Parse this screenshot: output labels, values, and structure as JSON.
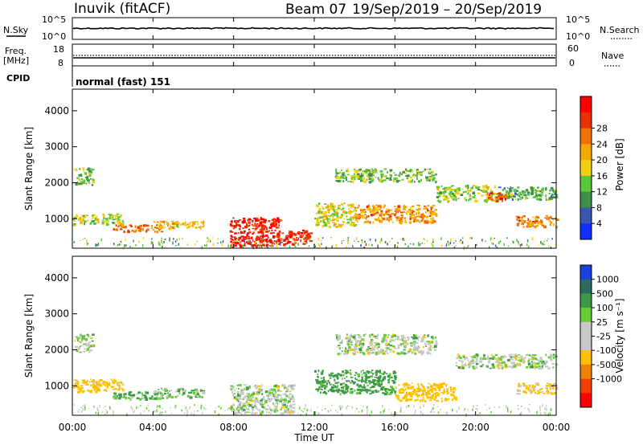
{
  "header": {
    "station": "Inuvik (fitACF)",
    "beam": "Beam 07",
    "date_range": "19/Sep/2019 – 20/Sep/2019"
  },
  "top_panels": {
    "nsky": {
      "label": "N.Sky",
      "ticks": [
        "10^5",
        "10^0"
      ]
    },
    "nsearch": {
      "label": "N.Search",
      "ticks": [
        "10^5",
        "10^0"
      ]
    },
    "freq": {
      "label_line1": "Freq.",
      "label_line2": "[MHz]",
      "ticks": [
        "18",
        "8"
      ]
    },
    "nave": {
      "label": "Nave",
      "ticks": [
        "60",
        "0"
      ]
    },
    "cpid": {
      "label": "CPID",
      "value": "normal (fast) 151"
    }
  },
  "chart_data": [
    {
      "type": "heatmap",
      "name": "power",
      "ylabel": "Slant Range [km]",
      "colorbar_label": "Power [dB]",
      "ylim": [
        180,
        4600
      ],
      "yticks": [
        1000,
        2000,
        3000,
        4000
      ],
      "colorbar_ticks": [
        "4",
        "8",
        "12",
        "16",
        "20",
        "24",
        "28"
      ],
      "colorbar_colors": [
        "#1030ff",
        "#3a56b0",
        "#3f8f4a",
        "#58c83a",
        "#f0d010",
        "#f5a800",
        "#f07000",
        "#e83000",
        "#ff0000"
      ],
      "regions": [
        {
          "t0": 0.1,
          "t1": 1.0,
          "r0": 1950,
          "r1": 2450,
          "value": 12
        },
        {
          "t0": 0.0,
          "t1": 2.5,
          "r0": 850,
          "r1": 1150,
          "value": 14
        },
        {
          "t0": 2.0,
          "t1": 4.5,
          "r0": 650,
          "r1": 850,
          "value": 24
        },
        {
          "t0": 4.0,
          "t1": 6.5,
          "r0": 750,
          "r1": 950,
          "value": 18
        },
        {
          "t0": 7.8,
          "t1": 10.3,
          "r0": 250,
          "r1": 1050,
          "value": 30
        },
        {
          "t0": 10.3,
          "t1": 11.8,
          "r0": 300,
          "r1": 700,
          "value": 30
        },
        {
          "t0": 12.0,
          "t1": 14.0,
          "r0": 800,
          "r1": 1450,
          "value": 16
        },
        {
          "t0": 14.0,
          "t1": 18.0,
          "r0": 900,
          "r1": 1400,
          "value": 22
        },
        {
          "t0": 13.0,
          "t1": 18.0,
          "r0": 2050,
          "r1": 2400,
          "value": 12
        },
        {
          "t0": 18.0,
          "t1": 21.0,
          "r0": 1500,
          "r1": 1950,
          "value": 14
        },
        {
          "t0": 21.0,
          "t1": 24.0,
          "r0": 1550,
          "r1": 1900,
          "value": 10
        },
        {
          "t0": 20.5,
          "t1": 21.5,
          "r0": 1500,
          "r1": 1750,
          "value": 26
        },
        {
          "t0": 22.0,
          "t1": 24.0,
          "r0": 800,
          "r1": 1100,
          "value": 22
        }
      ]
    },
    {
      "type": "heatmap",
      "name": "velocity",
      "ylabel": "Slant Range [km]",
      "colorbar_label": "Velocity [m s⁻¹]",
      "ylim": [
        180,
        4600
      ],
      "yticks": [
        1000,
        2000,
        3000,
        4000
      ],
      "colorbar_ticks": [
        "1000",
        "500",
        "100",
        "25",
        "-25",
        "-100",
        "-500",
        "-1000"
      ],
      "colorbar_colors": [
        "#1a40e0",
        "#2a6a60",
        "#3d9a46",
        "#66cc33",
        "#c8c8c8",
        "#c8c8c8",
        "#ffc000",
        "#f08000",
        "#f04000",
        "#ff0000"
      ],
      "regions": [
        {
          "t0": 0.1,
          "t1": 1.0,
          "r0": 1950,
          "r1": 2450,
          "value": 0
        },
        {
          "t0": 0.0,
          "t1": 2.5,
          "r0": 850,
          "r1": 1200,
          "value": -200
        },
        {
          "t0": 2.0,
          "t1": 4.5,
          "r0": 650,
          "r1": 850,
          "value": 120
        },
        {
          "t0": 4.0,
          "t1": 6.5,
          "r0": 700,
          "r1": 950,
          "value": 60
        },
        {
          "t0": 7.8,
          "t1": 11.0,
          "r0": 250,
          "r1": 1050,
          "value": 10
        },
        {
          "t0": 12.0,
          "t1": 16.0,
          "r0": 800,
          "r1": 1450,
          "value": 200
        },
        {
          "t0": 16.0,
          "t1": 19.0,
          "r0": 600,
          "r1": 1100,
          "value": -300
        },
        {
          "t0": 13.0,
          "t1": 18.0,
          "r0": 1900,
          "r1": 2450,
          "value": 0
        },
        {
          "t0": 19.0,
          "t1": 24.0,
          "r0": 1500,
          "r1": 1900,
          "value": 0
        },
        {
          "t0": 22.0,
          "t1": 24.0,
          "r0": 800,
          "r1": 1100,
          "value": -150
        }
      ]
    }
  ],
  "xaxis": {
    "label": "Time UT",
    "ticks": [
      "00:00",
      "04:00",
      "08:00",
      "12:00",
      "16:00",
      "20:00",
      "00:00"
    ],
    "xlim": [
      0,
      24
    ]
  }
}
